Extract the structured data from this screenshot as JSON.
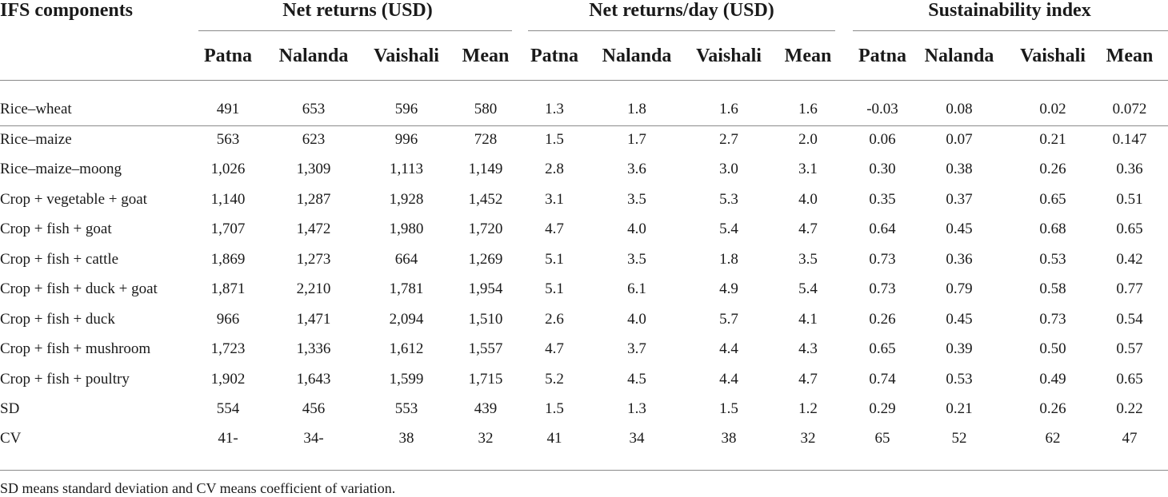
{
  "table": {
    "stub_header": "IFS components",
    "group_headers": [
      "Net returns (USD)",
      "Net returns/day (USD)",
      "Sustainability index"
    ],
    "sub_headers": [
      "Patna",
      "Nalanda",
      "Vaishali",
      "Mean",
      "Patna",
      "Nalanda",
      "Vaishali",
      "Mean",
      "Patna",
      "Nalanda",
      "Vaishali",
      "Mean"
    ],
    "rows": [
      {
        "label": "Rice–wheat",
        "values": [
          "491",
          "653",
          "596",
          "580",
          "1.3",
          "1.8",
          "1.6",
          "1.6",
          "-0.03",
          "0.08",
          "0.02",
          "0.072"
        ]
      },
      {
        "label": "Rice–maize",
        "values": [
          "563",
          "623",
          "996",
          "728",
          "1.5",
          "1.7",
          "2.7",
          "2.0",
          "0.06",
          "0.07",
          "0.21",
          "0.147"
        ]
      },
      {
        "label": "Rice–maize–moong",
        "values": [
          "1,026",
          "1,309",
          "1,113",
          "1,149",
          "2.8",
          "3.6",
          "3.0",
          "3.1",
          "0.30",
          "0.38",
          "0.26",
          "0.36"
        ]
      },
      {
        "label": "Crop + vegetable + goat",
        "values": [
          "1,140",
          "1,287",
          "1,928",
          "1,452",
          "3.1",
          "3.5",
          "5.3",
          "4.0",
          "0.35",
          "0.37",
          "0.65",
          "0.51"
        ]
      },
      {
        "label": "Crop + fish + goat",
        "values": [
          "1,707",
          "1,472",
          "1,980",
          "1,720",
          "4.7",
          "4.0",
          "5.4",
          "4.7",
          "0.64",
          "0.45",
          "0.68",
          "0.65"
        ]
      },
      {
        "label": "Crop + fish + cattle",
        "values": [
          "1,869",
          "1,273",
          "664",
          "1,269",
          "5.1",
          "3.5",
          "1.8",
          "3.5",
          "0.73",
          "0.36",
          "0.53",
          "0.42"
        ]
      },
      {
        "label": "Crop + fish + duck + goat",
        "values": [
          "1,871",
          "2,210",
          "1,781",
          "1,954",
          "5.1",
          "6.1",
          "4.9",
          "5.4",
          "0.73",
          "0.79",
          "0.58",
          "0.77"
        ]
      },
      {
        "label": "Crop + fish + duck",
        "values": [
          "966",
          "1,471",
          "2,094",
          "1,510",
          "2.6",
          "4.0",
          "5.7",
          "4.1",
          "0.26",
          "0.45",
          "0.73",
          "0.54"
        ]
      },
      {
        "label": "Crop + fish + mushroom",
        "values": [
          "1,723",
          "1,336",
          "1,612",
          "1,557",
          "4.7",
          "3.7",
          "4.4",
          "4.3",
          "0.65",
          "0.39",
          "0.50",
          "0.57"
        ]
      },
      {
        "label": "Crop + fish + poultry",
        "values": [
          "1,902",
          "1,643",
          "1,599",
          "1,715",
          "5.2",
          "4.5",
          "4.4",
          "4.7",
          "0.74",
          "0.53",
          "0.49",
          "0.65"
        ]
      },
      {
        "label": "SD",
        "values": [
          "554",
          "456",
          "553",
          "439",
          "1.5",
          "1.3",
          "1.5",
          "1.2",
          "0.29",
          "0.21",
          "0.26",
          "0.22"
        ]
      },
      {
        "label": "CV",
        "values": [
          "41-",
          "34-",
          "38",
          "32",
          "41",
          "34",
          "38",
          "32",
          "65",
          "52",
          "62",
          "47"
        ]
      }
    ],
    "footnote": "SD means standard deviation and CV means coefficient of variation."
  }
}
